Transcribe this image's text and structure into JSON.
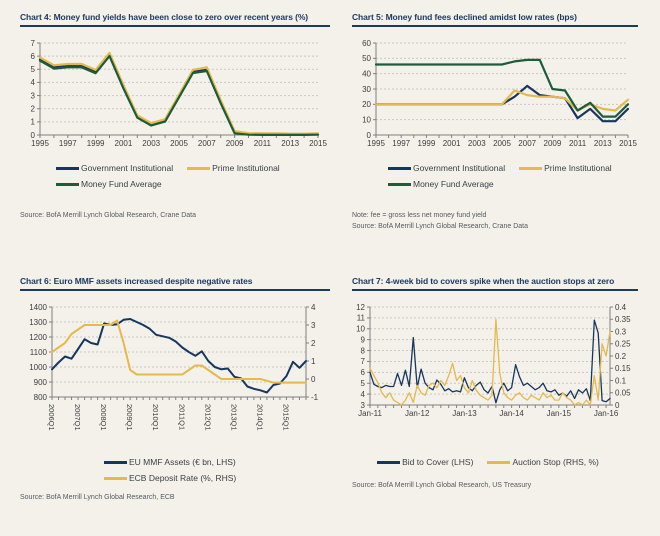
{
  "page": {
    "background": "#F4F1EB",
    "description": "Research report page with four line charts on money market funds"
  },
  "colors": {
    "navy": "#17365D",
    "gold": "#E2BA4E",
    "green": "#1E5B38",
    "title_navy": "#1D3A60",
    "grid": "#C9C7C2",
    "axis": "#7F7F7F",
    "tick_label": "#3D3D3D",
    "legend_text": "#3A3F44",
    "source_text": "#55595E"
  },
  "chart_data": [
    {
      "type": "line",
      "title": "Chart 4: Money fund yields have been close to zero over recent years (%)",
      "source": "Source: BofA Merrill Lynch Global Research, Crane Data",
      "categories": [
        "1995",
        "1996",
        "1997",
        "1998",
        "1999",
        "2000",
        "2001",
        "2002",
        "2003",
        "2004",
        "2005",
        "2006",
        "2007",
        "2008",
        "2009",
        "2010",
        "2011",
        "2012",
        "2013",
        "2014",
        "2015"
      ],
      "x_labels": [
        {
          "i": 0,
          "t": "1995"
        },
        {
          "i": 2,
          "t": "1997"
        },
        {
          "i": 4,
          "t": "1999"
        },
        {
          "i": 6,
          "t": "2001"
        },
        {
          "i": 8,
          "t": "2003"
        },
        {
          "i": 10,
          "t": "2005"
        },
        {
          "i": 12,
          "t": "2007"
        },
        {
          "i": 14,
          "t": "2009"
        },
        {
          "i": 16,
          "t": "2011"
        },
        {
          "i": 18,
          "t": "2013"
        },
        {
          "i": 20,
          "t": "2015"
        }
      ],
      "left_axis": {
        "lim": [
          0,
          7
        ],
        "ticks": [
          0,
          1,
          2,
          3,
          4,
          5,
          6,
          7
        ],
        "labels": [
          "0",
          "1",
          "2",
          "3",
          "4",
          "5",
          "6",
          "7"
        ]
      },
      "series": [
        {
          "name": "Government Institutional",
          "color": "#17365D",
          "axis": "L",
          "values": [
            5.75,
            5.15,
            5.25,
            5.25,
            4.8,
            6.1,
            3.65,
            1.4,
            0.8,
            1.1,
            2.95,
            4.8,
            4.95,
            2.5,
            0.2,
            0.06,
            0.05,
            0.05,
            0.04,
            0.04,
            0.05
          ]
        },
        {
          "name": "Prime Institutional",
          "color": "#E2BA4E",
          "axis": "L",
          "values": [
            5.9,
            5.3,
            5.4,
            5.4,
            4.95,
            6.25,
            3.8,
            1.5,
            0.9,
            1.2,
            3.05,
            4.95,
            5.15,
            2.65,
            0.3,
            0.14,
            0.12,
            0.12,
            0.1,
            0.1,
            0.12
          ]
        },
        {
          "name": "Money Fund Average",
          "color": "#1E5B38",
          "axis": "L",
          "values": [
            5.65,
            5.05,
            5.15,
            5.15,
            4.7,
            6.0,
            3.55,
            1.32,
            0.72,
            1.02,
            2.87,
            4.72,
            4.87,
            2.42,
            0.13,
            0.02,
            0.01,
            0.01,
            0.01,
            0.01,
            0.02
          ]
        }
      ],
      "grid": "horizontal-dashed",
      "legend_position": "below"
    },
    {
      "type": "line",
      "title": "Chart 5: Money fund fees declined amidst low rates (bps)",
      "note": "Note: fee = gross less net money fund yield",
      "source": "Source: BofA Merrill Lynch Global Research, Crane Data",
      "categories": [
        "1995",
        "1996",
        "1997",
        "1998",
        "1999",
        "2000",
        "2001",
        "2002",
        "2003",
        "2004",
        "2005",
        "2006",
        "2007",
        "2008",
        "2009",
        "2010",
        "2011",
        "2012",
        "2013",
        "2014",
        "2015"
      ],
      "x_labels": [
        {
          "i": 0,
          "t": "1995"
        },
        {
          "i": 2,
          "t": "1997"
        },
        {
          "i": 4,
          "t": "1999"
        },
        {
          "i": 6,
          "t": "2001"
        },
        {
          "i": 8,
          "t": "2003"
        },
        {
          "i": 10,
          "t": "2005"
        },
        {
          "i": 12,
          "t": "2007"
        },
        {
          "i": 14,
          "t": "2009"
        },
        {
          "i": 16,
          "t": "2011"
        },
        {
          "i": 18,
          "t": "2013"
        },
        {
          "i": 20,
          "t": "2015"
        }
      ],
      "left_axis": {
        "lim": [
          0,
          60
        ],
        "ticks": [
          0,
          10,
          20,
          30,
          40,
          50,
          60
        ],
        "labels": [
          "0",
          "10",
          "20",
          "30",
          "40",
          "50",
          "60"
        ]
      },
      "series": [
        {
          "name": "Government Institutional",
          "color": "#17365D",
          "axis": "L",
          "values": [
            20,
            20,
            20,
            20,
            20,
            20,
            20,
            20,
            20,
            20,
            20,
            25,
            32,
            26,
            25,
            24,
            11,
            17,
            9,
            9,
            17
          ]
        },
        {
          "name": "Prime Institutional",
          "color": "#E2BA4E",
          "axis": "L",
          "values": [
            20,
            20,
            20,
            20,
            20,
            20,
            20,
            20,
            20,
            20,
            20,
            29,
            26,
            25,
            25,
            24,
            16,
            20,
            17,
            16,
            23
          ]
        },
        {
          "name": "Money Fund Average",
          "color": "#1E5B38",
          "axis": "L",
          "values": [
            46,
            46,
            46,
            46,
            46,
            46,
            46,
            46,
            46,
            46,
            46,
            48,
            49,
            49,
            30,
            29,
            16,
            21,
            12,
            12,
            20
          ]
        }
      ],
      "grid": "horizontal-dashed",
      "legend_position": "below"
    },
    {
      "type": "line",
      "title": "Chart 6: Euro MMF assets increased despite negative rates",
      "source": "Source: BofA Merrill Lynch Global Research, ECB",
      "categories": [
        "2006Q1",
        "2006Q2",
        "2006Q3",
        "2006Q4",
        "2007Q1",
        "2007Q2",
        "2007Q3",
        "2007Q4",
        "2008Q1",
        "2008Q2",
        "2008Q3",
        "2008Q4",
        "2009Q1",
        "2009Q2",
        "2009Q3",
        "2009Q4",
        "2010Q1",
        "2010Q2",
        "2010Q3",
        "2010Q4",
        "2011Q1",
        "2011Q2",
        "2011Q3",
        "2011Q4",
        "2012Q1",
        "2012Q2",
        "2012Q3",
        "2012Q4",
        "2013Q1",
        "2013Q2",
        "2013Q3",
        "2013Q4",
        "2014Q1",
        "2014Q2",
        "2014Q3",
        "2014Q4",
        "2015Q1",
        "2015Q2",
        "2015Q3",
        "2015Q4"
      ],
      "x_labels": [
        {
          "i": 0,
          "t": "2006Q1"
        },
        {
          "i": 4,
          "t": "2007Q1"
        },
        {
          "i": 8,
          "t": "2008Q1"
        },
        {
          "i": 12,
          "t": "2009Q1"
        },
        {
          "i": 16,
          "t": "2010Q1"
        },
        {
          "i": 20,
          "t": "2011Q1"
        },
        {
          "i": 24,
          "t": "2012Q1"
        },
        {
          "i": 28,
          "t": "2013Q1"
        },
        {
          "i": 32,
          "t": "2014Q1"
        },
        {
          "i": 36,
          "t": "2015Q1"
        }
      ],
      "left_axis": {
        "lim": [
          800,
          1400
        ],
        "ticks": [
          800,
          900,
          1000,
          1100,
          1200,
          1300,
          1400
        ],
        "labels": [
          "800",
          "900",
          "1000",
          "1100",
          "1200",
          "1300",
          "1400"
        ]
      },
      "right_axis": {
        "lim": [
          -1,
          4
        ],
        "ticks": [
          -1,
          0,
          1,
          2,
          3,
          4
        ],
        "labels": [
          "-1",
          "0",
          "1",
          "2",
          "3",
          "4"
        ]
      },
      "series": [
        {
          "name": "EU MMF Assets (€ bn, LHS)",
          "color": "#17365D",
          "axis": "L",
          "values": [
            985,
            1030,
            1070,
            1055,
            1120,
            1185,
            1160,
            1150,
            1290,
            1280,
            1285,
            1315,
            1320,
            1300,
            1280,
            1255,
            1215,
            1205,
            1195,
            1170,
            1130,
            1100,
            1075,
            1105,
            1040,
            1000,
            985,
            990,
            935,
            925,
            870,
            855,
            845,
            830,
            880,
            890,
            940,
            1035,
            995,
            1040
          ]
        },
        {
          "name": "ECB Deposit Rate (%, RHS)",
          "color": "#E2BA4E",
          "axis": "R",
          "values": [
            1.5,
            1.75,
            2.0,
            2.5,
            2.75,
            3.0,
            3.0,
            3.0,
            3.0,
            3.0,
            3.25,
            2.0,
            0.5,
            0.25,
            0.25,
            0.25,
            0.25,
            0.25,
            0.25,
            0.25,
            0.25,
            0.5,
            0.75,
            0.75,
            0.5,
            0.25,
            0.0,
            0.0,
            0.0,
            0.0,
            0.0,
            0.0,
            0.0,
            -0.1,
            -0.2,
            -0.2,
            -0.2,
            -0.2,
            -0.2,
            -0.2
          ]
        }
      ],
      "grid": "horizontal-dashed",
      "legend_position": "below",
      "x_tick_rotation": 90
    },
    {
      "type": "line",
      "title": "Chart 7: 4-week bid to covers spike when the auction stops at zero",
      "source": "Source: BofA Merrill Lynch Global Research, US Treasury",
      "x_note": "evenly spaced points, approx. monthly samples Jan-11 to Feb-16",
      "x_labels": [
        {
          "i": 0,
          "t": "Jan-11"
        },
        {
          "i": 12,
          "t": "Jan-12"
        },
        {
          "i": 24,
          "t": "Jan-13"
        },
        {
          "i": 36,
          "t": "Jan-14"
        },
        {
          "i": 48,
          "t": "Jan-15"
        },
        {
          "i": 60,
          "t": "Jan-16"
        }
      ],
      "left_axis": {
        "lim": [
          3,
          12
        ],
        "ticks": [
          3,
          4,
          5,
          6,
          7,
          8,
          9,
          10,
          11,
          12
        ],
        "labels": [
          "3",
          "4",
          "5",
          "6",
          "7",
          "8",
          "9",
          "10",
          "11",
          "12"
        ]
      },
      "right_axis": {
        "lim": [
          0,
          0.4
        ],
        "ticks": [
          0,
          0.05,
          0.1,
          0.15,
          0.2,
          0.25,
          0.3,
          0.35,
          0.4
        ],
        "labels": [
          "0",
          "0.05",
          "0.1",
          "0.15",
          "0.2",
          "0.25",
          "0.3",
          "0.35",
          "0.4"
        ]
      },
      "series": [
        {
          "name": "Bid to Cover (LHS)",
          "color": "#17365D",
          "axis": "L",
          "values": [
            6.0,
            4.9,
            4.7,
            4.6,
            4.8,
            4.7,
            4.7,
            5.9,
            4.8,
            6.2,
            4.7,
            9.2,
            4.6,
            6.3,
            5.0,
            4.6,
            4.4,
            5.3,
            4.9,
            4.3,
            4.5,
            4.2,
            4.3,
            4.2,
            5.5,
            4.6,
            4.3,
            4.8,
            5.1,
            4.4,
            4.1,
            4.7,
            3.2,
            4.4,
            5.0,
            4.3,
            4.6,
            6.7,
            5.6,
            4.8,
            5.0,
            4.7,
            4.4,
            4.6,
            5.0,
            4.3,
            4.2,
            4.4,
            3.9,
            4.1,
            3.8,
            4.3,
            3.6,
            4.4,
            4.1,
            4.5,
            3.4,
            10.8,
            9.6,
            3.4,
            3.3,
            3.6
          ]
        },
        {
          "name": "Auction Stop (RHS, %)",
          "color": "#E2BA4E",
          "axis": "R",
          "values": [
            0.15,
            0.12,
            0.09,
            0.05,
            0.03,
            0.05,
            0.02,
            0.01,
            0.0,
            0.02,
            0.05,
            0.01,
            0.08,
            0.05,
            0.04,
            0.08,
            0.09,
            0.07,
            0.1,
            0.08,
            0.12,
            0.17,
            0.1,
            0.12,
            0.07,
            0.05,
            0.1,
            0.06,
            0.04,
            0.03,
            0.02,
            0.04,
            0.35,
            0.13,
            0.05,
            0.03,
            0.02,
            0.04,
            0.05,
            0.03,
            0.02,
            0.04,
            0.03,
            0.02,
            0.05,
            0.03,
            0.04,
            0.02,
            0.02,
            0.05,
            0.03,
            0.02,
            0.0,
            0.01,
            0.0,
            0.02,
            0.0,
            0.12,
            0.02,
            0.25,
            0.2,
            0.3
          ]
        }
      ],
      "grid": "horizontal-dashed",
      "legend_position": "below"
    }
  ]
}
